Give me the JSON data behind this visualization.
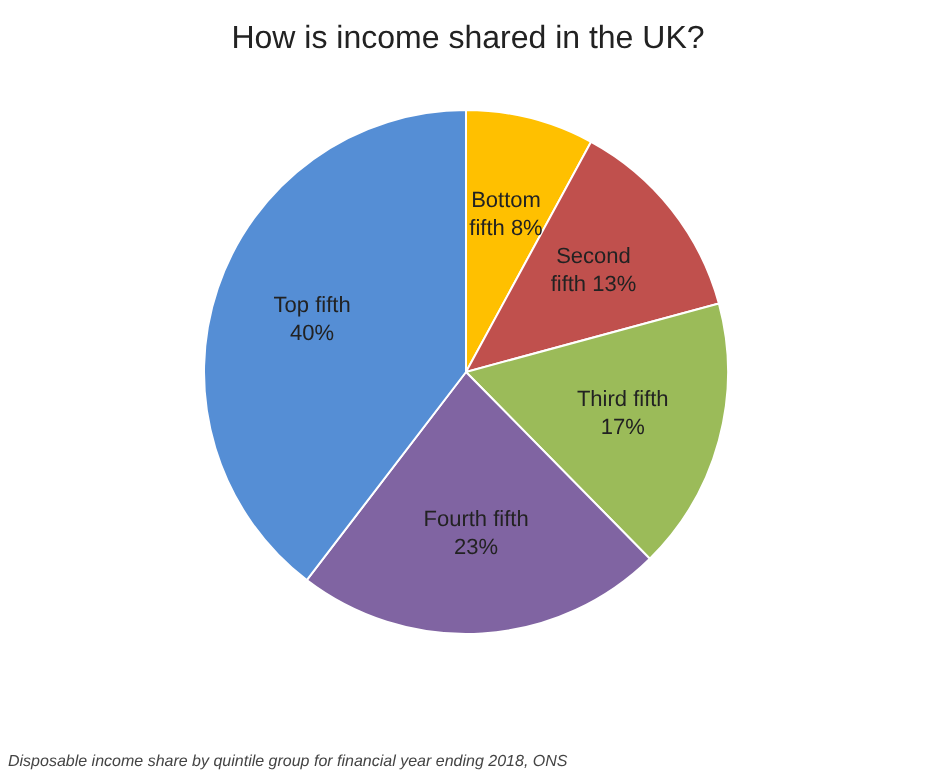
{
  "chart_data": {
    "type": "pie",
    "title": "How is income shared in the UK?",
    "categories": [
      "Bottom fifth",
      "Second fifth",
      "Third fifth",
      "Fourth  fifth",
      "Top fifth"
    ],
    "values": [
      8,
      13,
      17,
      23,
      40
    ],
    "colors": [
      "#ffc000",
      "#c0504d",
      "#9bbb59",
      "#8064a2",
      "#558ed5"
    ],
    "value_labels": [
      "8%",
      "13%",
      "17%",
      "23%",
      "40%"
    ],
    "annotations": [
      "Disposable income share by quintile group for financial year ending 2018, ONS"
    ]
  }
}
